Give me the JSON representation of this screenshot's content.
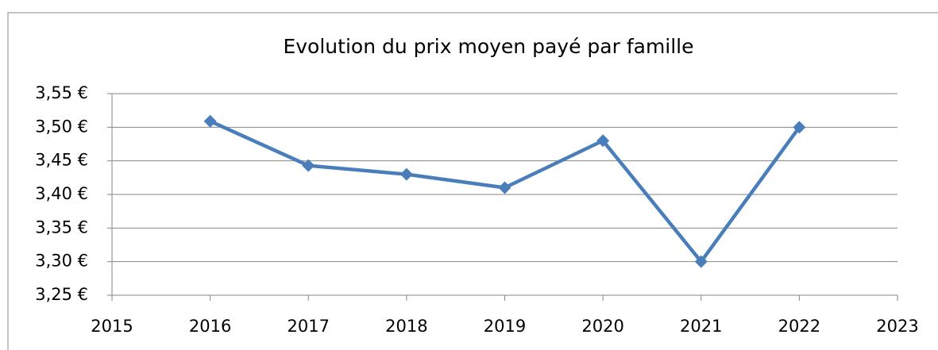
{
  "chart_data": {
    "type": "line",
    "title": "Evolution du prix moyen payé par famille",
    "x": [
      2016,
      2017,
      2018,
      2019,
      2020,
      2021,
      2022
    ],
    "values": [
      3.509,
      3.443,
      3.43,
      3.41,
      3.48,
      3.3,
      3.5
    ],
    "color": "#4a7ebb",
    "xlim": [
      2015,
      2023
    ],
    "xticks": [
      2015,
      2016,
      2017,
      2018,
      2019,
      2020,
      2021,
      2022,
      2023
    ],
    "ylim": [
      3.25,
      3.55
    ],
    "yticks": [
      {
        "value": 3.25,
        "label": "3,25 €"
      },
      {
        "value": 3.3,
        "label": "3,30 €"
      },
      {
        "value": 3.35,
        "label": "3,35 €"
      },
      {
        "value": 3.4,
        "label": "3,40 €"
      },
      {
        "value": 3.45,
        "label": "3,45 €"
      },
      {
        "value": 3.5,
        "label": "3,50 €"
      },
      {
        "value": 3.55,
        "label": "3,55 €"
      }
    ],
    "grid": true
  }
}
